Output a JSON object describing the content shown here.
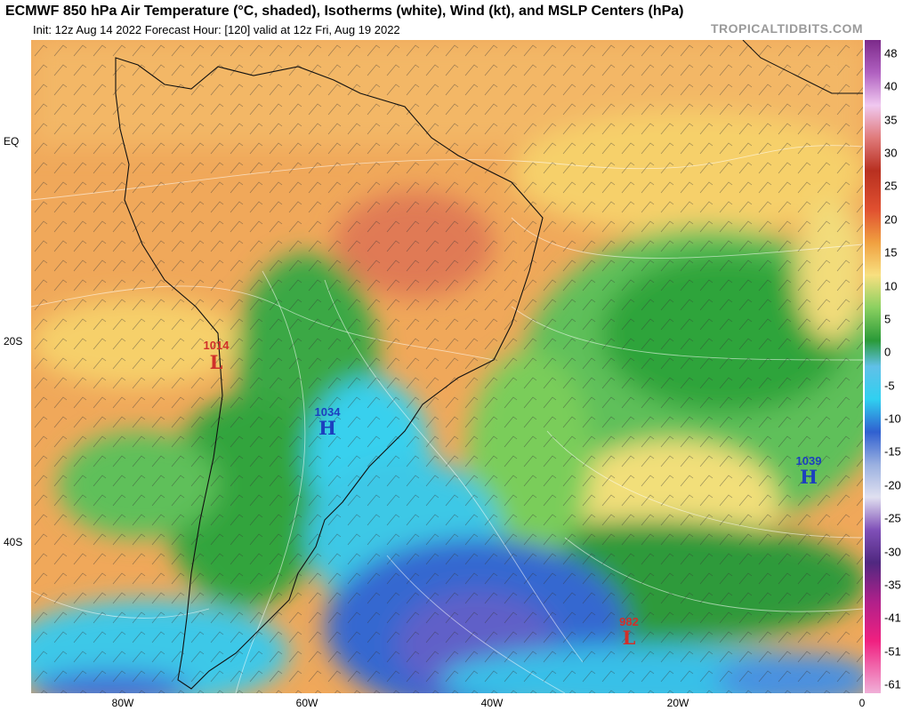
{
  "header": {
    "title": "ECMWF 850 hPa Air Temperature (°C, shaded), Isotherms (white), Wind (kt), and MSLP Centers (hPa)",
    "subtitle": "Init: 12z Aug 14 2022    Forecast Hour: [120]    valid at 12z Fri, Aug 19 2022",
    "brand": "TROPICALTIDBITS.COM"
  },
  "map": {
    "latitude_labels": [
      "EQ",
      "20S",
      "40S"
    ],
    "longitude_labels": [
      "80W",
      "60W",
      "40W",
      "20W",
      "0"
    ]
  },
  "pressure_centers": [
    {
      "type": "L",
      "value": "1014",
      "color": "#d0302a"
    },
    {
      "type": "H",
      "value": "1034",
      "color": "#1c3fbf"
    },
    {
      "type": "H",
      "value": "1039",
      "color": "#1c3fbf"
    },
    {
      "type": "L",
      "value": "982",
      "color": "#d0302a"
    }
  ],
  "colorbar": {
    "ticks": [
      "48",
      "40",
      "35",
      "30",
      "25",
      "20",
      "15",
      "10",
      "5",
      "0",
      "-5",
      "-10",
      "-15",
      "-20",
      "-25",
      "-30",
      "-35",
      "-41",
      "-51",
      "-61"
    ],
    "colors": {
      "hot": "#e06a6a",
      "warm": "#f0a450",
      "mild": "#f6d76a",
      "cool": "#36b040",
      "cold": "#30d8f0",
      "frigid": "#3050c8",
      "extreme": "#8a4fb8"
    }
  }
}
